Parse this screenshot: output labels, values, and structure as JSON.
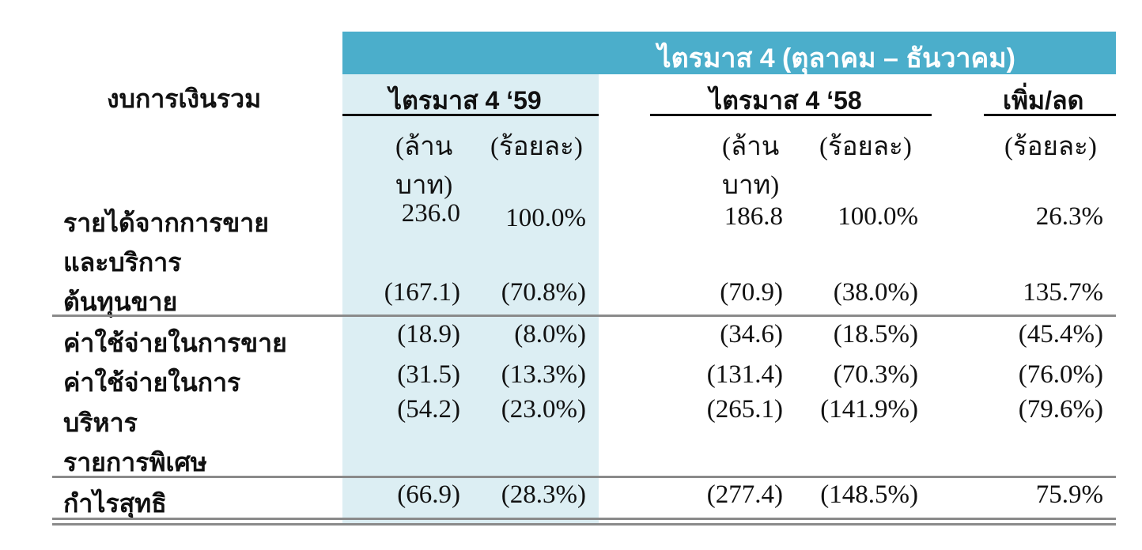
{
  "header": {
    "band_title": "ไตรมาส 4 (ตุลาคม – ธันวาคม)",
    "row_title": "งบการเงินรวม",
    "col_q4_59": "ไตรมาส 4 ‘59",
    "col_q4_58": "ไตรมาส 4 ‘58",
    "col_change": "เพิ่ม/ลด",
    "unit_mb_line1": "(ล้าน",
    "unit_mb_line2": "บาท)",
    "unit_pct": "(ร้อยละ)"
  },
  "rows": [
    {
      "label": [
        "รายได้จากการขาย",
        "และบริการ"
      ],
      "v59": "236.0",
      "p59": "100.0%",
      "v58": "186.8",
      "p58": "100.0%",
      "chg": "26.3%"
    },
    {
      "label": [
        "ต้นทุนขาย"
      ],
      "v59": "(167.1)",
      "p59": "(70.8%)",
      "v58": "(70.9)",
      "p58": "(38.0%)",
      "chg": "135.7%"
    },
    {
      "label": [
        "ค่าใช้จ่ายในการขาย"
      ],
      "v59": "(18.9)",
      "p59": "(8.0%)",
      "v58": "(34.6)",
      "p58": "(18.5%)",
      "chg": "(45.4%)"
    },
    {
      "label": [
        "ค่าใช้จ่ายในการ",
        "บริหาร"
      ],
      "v59": "(31.5)",
      "p59": "(13.3%)",
      "v58": "(131.4)",
      "p58": "(70.3%)",
      "chg": "(76.0%)"
    },
    {
      "label": [
        "รายการพิเศษ"
      ],
      "v59": "(54.2)",
      "p59": "(23.0%)",
      "v58": "(265.1)",
      "p58": "(141.9%)",
      "chg": "(79.6%)"
    },
    {
      "label": [
        "กำไรสุทธิ"
      ],
      "v59": "(66.9)",
      "p59": "(28.3%)",
      "v58": "(277.4)",
      "p58": "(148.5%)",
      "chg": "75.9%"
    }
  ]
}
